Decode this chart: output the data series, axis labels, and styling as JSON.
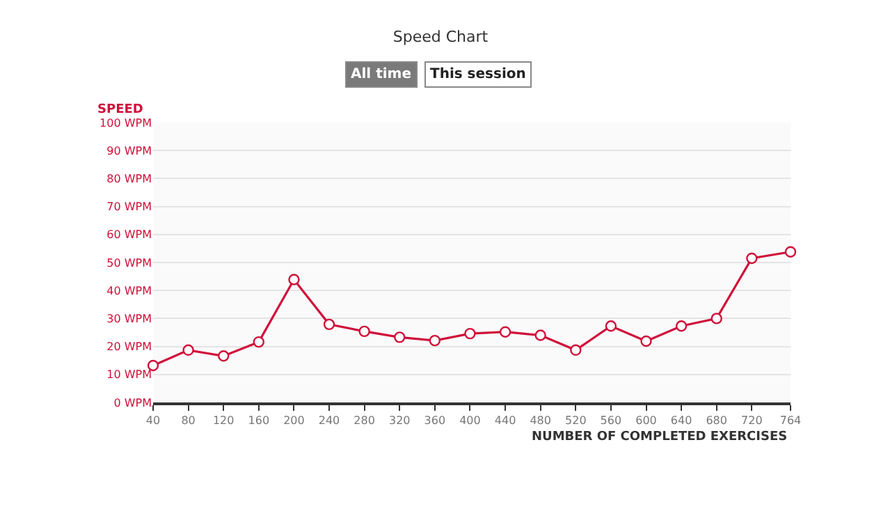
{
  "chart_data": {
    "type": "line",
    "title": "Speed Chart",
    "annotations": [
      "All time",
      "This session"
    ],
    "ylabel": "SPEED",
    "xlabel": "NUMBER OF COMPLETED EXERCISES",
    "x": [
      40,
      80,
      120,
      160,
      200,
      240,
      280,
      320,
      360,
      400,
      440,
      480,
      520,
      560,
      600,
      640,
      680,
      720,
      764
    ],
    "series": [
      {
        "color": "#d0103a",
        "values": [
          13.2,
          18.7,
          16.6,
          21.6,
          43.9,
          27.9,
          25.4,
          23.3,
          22.1,
          24.6,
          25.2,
          24.0,
          18.7,
          27.3,
          21.9,
          27.3,
          30.0,
          51.5,
          53.8
        ]
      }
    ],
    "xlim": [
      40,
      764
    ],
    "xticks": [
      40,
      80,
      120,
      160,
      200,
      240,
      280,
      320,
      360,
      400,
      440,
      480,
      520,
      560,
      600,
      640,
      680,
      720,
      764
    ],
    "ylim": [
      0,
      100
    ],
    "yticks": [
      {
        "value": 0,
        "label": "0 WPM"
      },
      {
        "value": 10,
        "label": "10 WPM"
      },
      {
        "value": 20,
        "label": "20 WPM"
      },
      {
        "value": 30,
        "label": "30 WPM"
      },
      {
        "value": 40,
        "label": "40 WPM"
      },
      {
        "value": 50,
        "label": "50 WPM"
      },
      {
        "value": 60,
        "label": "60 WPM"
      },
      {
        "value": 70,
        "label": "70 WPM"
      },
      {
        "value": 80,
        "label": "80 WPM"
      },
      {
        "value": 90,
        "label": "90 WPM"
      },
      {
        "value": 100,
        "label": "100 WPM"
      }
    ],
    "grid": "y",
    "marker": "circle",
    "line_style": "solid"
  }
}
